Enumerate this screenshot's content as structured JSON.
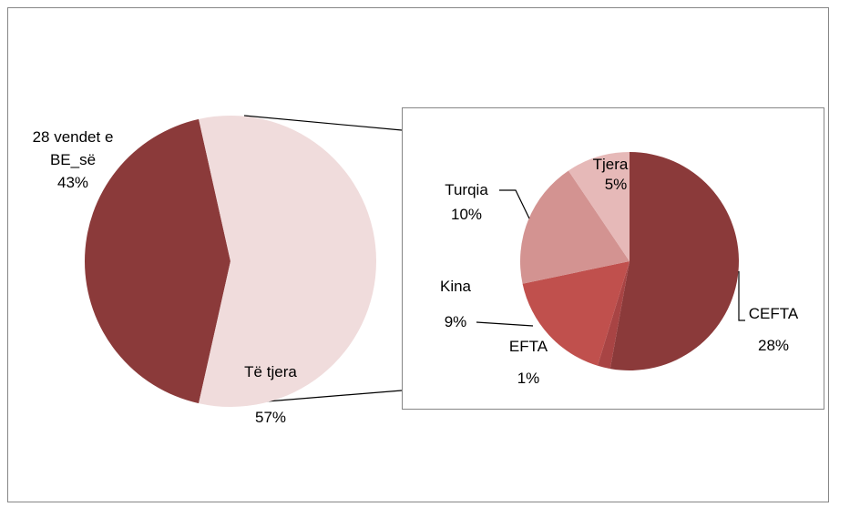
{
  "chart_data": [
    {
      "type": "pie",
      "categories": [
        "28 vendet e BE_së",
        "Të tjera"
      ],
      "values": [
        43,
        57
      ],
      "value_labels": [
        "43%",
        "57%"
      ],
      "colors": [
        "#8b3a3a",
        "#f0dcdc"
      ]
    },
    {
      "type": "pie",
      "categories": [
        "CEFTA",
        "EFTA",
        "Kina",
        "Turqia",
        "Tjera"
      ],
      "values": [
        28,
        1,
        9,
        10,
        5
      ],
      "value_labels": [
        "28%",
        "1%",
        "9%",
        "10%",
        "5%"
      ],
      "colors": [
        "#8b3a3a",
        "#a84444",
        "#c0504d",
        "#d39391",
        "#e6b9b8"
      ]
    }
  ]
}
